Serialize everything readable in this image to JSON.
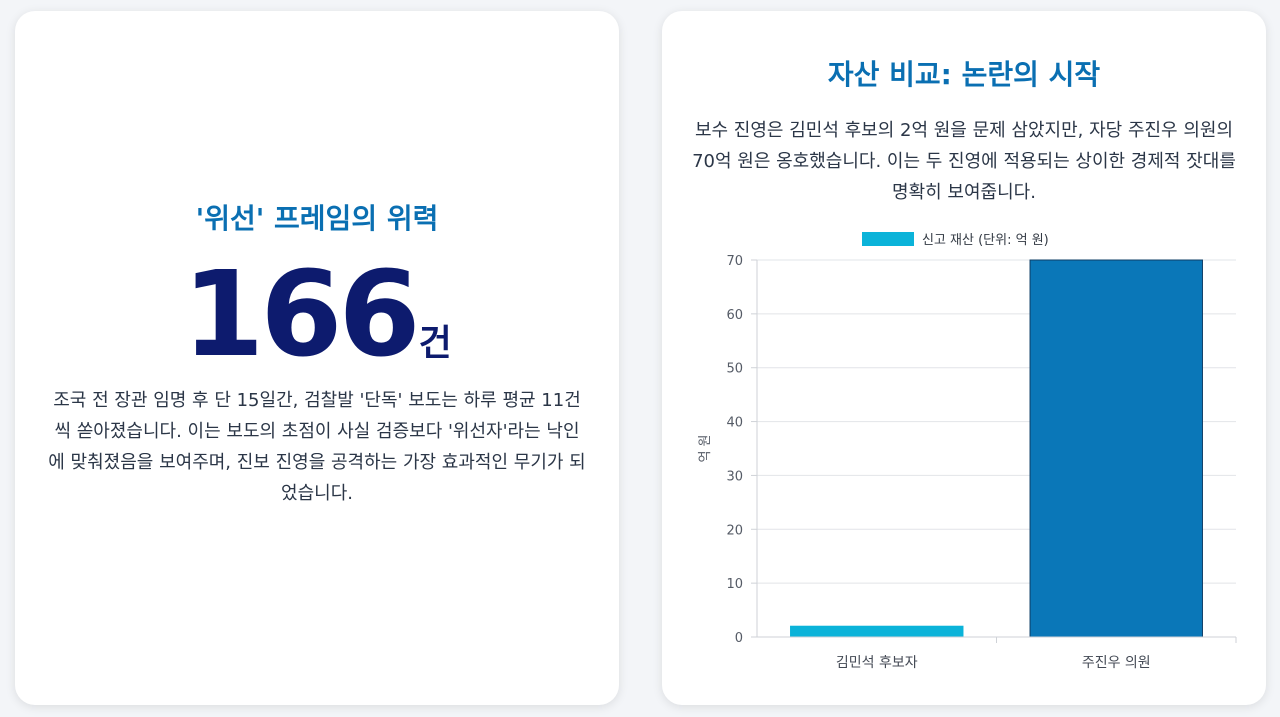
{
  "left_card": {
    "heading": "'위선' 프레임의 위력",
    "big_number": "166",
    "unit": "건",
    "body": "조국 전 장관 임명 후 단 15일간, 검찰발 '단독' 보도는 하루 평균 11건씩 쏟아졌습니다. 이는 보도의 초점이 사실 검증보다 '위선자'라는 낙인에 맞춰졌음을 보여주며, 진보 진영을 공격하는 가장 효과적인 무기가 되었습니다."
  },
  "right_card": {
    "title": "자산 비교: 논란의 시작",
    "description": "보수 진영은 김민석 후보의 2억 원을 문제 삼았지만, 자당 주진우 의원의 70억 원은 옹호했습니다. 이는 두 진영에 적용되는 상이한 경제적 잣대를 명확히 보여줍니다."
  },
  "chart_data": {
    "type": "bar",
    "categories": [
      "김민석 후보자",
      "주진우 의원"
    ],
    "series": [
      {
        "name": "신고 재산 (단위: 억 원)",
        "values": [
          2,
          70
        ],
        "colors": [
          "#0bb3d9",
          "#0a77b8"
        ]
      }
    ],
    "title": "",
    "xlabel": "",
    "ylabel": "억 원",
    "ylim": [
      0,
      70
    ],
    "yticks": [
      0,
      10,
      20,
      30,
      40,
      50,
      60,
      70
    ],
    "grid": true,
    "legend_position": "top-center",
    "legend_color": "#0bb3d9"
  }
}
